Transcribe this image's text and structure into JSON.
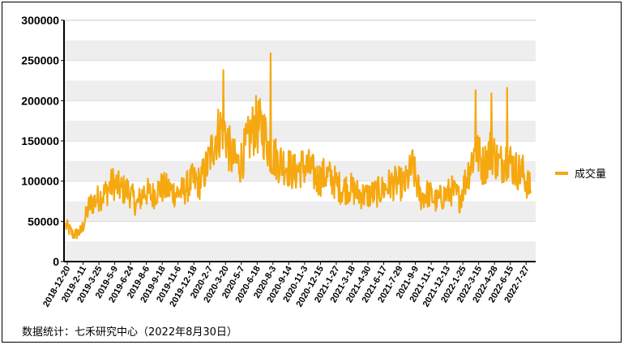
{
  "chart_data": {
    "type": "line",
    "title": "",
    "xlabel": "",
    "ylabel": "",
    "ylim": [
      0,
      300000
    ],
    "yticks": [
      0,
      50000,
      100000,
      150000,
      200000,
      250000,
      300000
    ],
    "ytick_labels": [
      "0",
      "50000",
      "100000",
      "150000",
      "200000",
      "250000",
      "300000"
    ],
    "x_tick_labels": [
      "2018-12-20",
      "2019-2-11",
      "2019-3-25",
      "2019-5-9",
      "2019-6-24",
      "2019-8-6",
      "2019-9-18",
      "2019-11-6",
      "2019-12-18",
      "2020-2-7",
      "2020-3-20",
      "2020-5-7",
      "2020-6-18",
      "2020-8-3",
      "2020-9-14",
      "2020-11-3",
      "2020-12-15",
      "2021-1-27",
      "2021-3-18",
      "2021-4-30",
      "2021-6-17",
      "2021-7-29",
      "2021-9-9",
      "2021-11-1",
      "2021-12-13",
      "2022-1-25",
      "2022-3-15",
      "2022-4-28",
      "2022-6-15",
      "2022-7-27"
    ],
    "grid": "horizontal bands",
    "legend_position": "right",
    "series": [
      {
        "name": "成交量",
        "color": "#F5A80F",
        "x": [
          "2018-12-20",
          "2019-1-15",
          "2019-2-11",
          "2019-3-1",
          "2019-3-25",
          "2019-4-15",
          "2019-5-9",
          "2019-6-1",
          "2019-6-24",
          "2019-7-15",
          "2019-8-6",
          "2019-8-28",
          "2019-9-18",
          "2019-10-15",
          "2019-11-6",
          "2019-11-28",
          "2019-12-18",
          "2020-1-15",
          "2020-2-7",
          "2020-2-28",
          "2020-3-20",
          "2020-4-15",
          "2020-5-7",
          "2020-5-28",
          "2020-6-18",
          "2020-7-10",
          "2020-8-3",
          "2020-8-25",
          "2020-9-14",
          "2020-10-15",
          "2020-11-3",
          "2020-11-25",
          "2020-12-15",
          "2021-1-6",
          "2021-1-27",
          "2021-2-25",
          "2021-3-18",
          "2021-4-9",
          "2021-4-30",
          "2021-5-25",
          "2021-6-17",
          "2021-7-8",
          "2021-7-29",
          "2021-8-19",
          "2021-9-9",
          "2021-10-8",
          "2021-11-1",
          "2021-11-22",
          "2021-12-13",
          "2022-1-4",
          "2022-1-25",
          "2022-2-22",
          "2022-3-15",
          "2022-4-6",
          "2022-4-28",
          "2022-5-20",
          "2022-6-15",
          "2022-7-6",
          "2022-7-27",
          "2022-8-30"
        ],
        "values": [
          45000,
          33000,
          38000,
          70000,
          78000,
          85000,
          98000,
          90000,
          88000,
          70000,
          88000,
          82000,
          92000,
          90000,
          85000,
          88000,
          100000,
          98000,
          120000,
          155000,
          170000,
          130000,
          120000,
          145000,
          170000,
          165000,
          135000,
          125000,
          120000,
          110000,
          118000,
          115000,
          102000,
          108000,
          100000,
          90000,
          92000,
          85000,
          82000,
          84000,
          88000,
          95000,
          98000,
          95000,
          118000,
          80000,
          85000,
          75000,
          82000,
          88000,
          78000,
          110000,
          140000,
          118000,
          140000,
          120000,
          130000,
          115000,
          110000,
          88000
        ],
        "peaks": [
          {
            "x": "2020-3-20",
            "value": 238000
          },
          {
            "x": "2020-8-3",
            "value": 259000
          },
          {
            "x": "2022-3-15",
            "value": 213000
          },
          {
            "x": "2022-4-28",
            "value": 209000
          },
          {
            "x": "2022-6-15",
            "value": 216000
          }
        ]
      }
    ]
  },
  "legend": {
    "label": "成交量"
  },
  "source_note": "数据统计：七禾研究中心（2022年8月30日）"
}
